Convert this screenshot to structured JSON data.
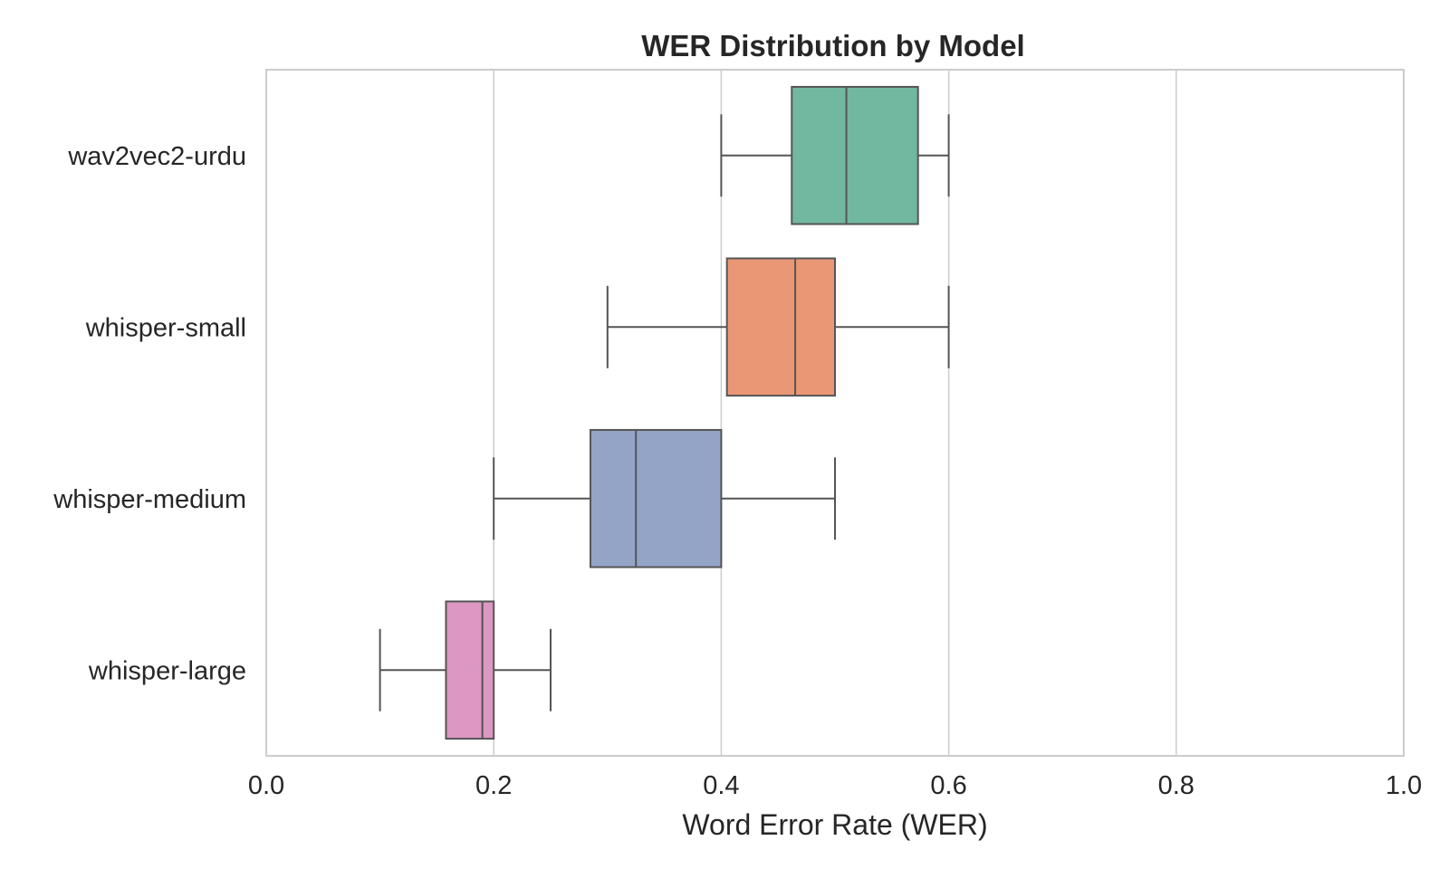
{
  "chart_data": {
    "type": "box",
    "orientation": "horizontal",
    "title": "WER Distribution by Model",
    "xlabel": "Word Error Rate (WER)",
    "ylabel": "",
    "xlim": [
      0,
      1.0
    ],
    "xticks": [
      "0.0",
      "0.2",
      "0.4",
      "0.6",
      "0.8",
      "1.0"
    ],
    "grid": "vertical",
    "categories": [
      "wav2vec2-urdu",
      "whisper-small",
      "whisper-medium",
      "whisper-large"
    ],
    "boxes": [
      {
        "name": "wav2vec2-urdu",
        "whislo": 0.4,
        "q1": 0.462,
        "med": 0.51,
        "q3": 0.573,
        "whishi": 0.6,
        "color": "#72b7a0"
      },
      {
        "name": "whisper-small",
        "whislo": 0.3,
        "q1": 0.405,
        "med": 0.465,
        "q3": 0.5,
        "whishi": 0.6,
        "color": "#ea9775"
      },
      {
        "name": "whisper-medium",
        "whislo": 0.2,
        "q1": 0.285,
        "med": 0.325,
        "q3": 0.4,
        "whishi": 0.5,
        "color": "#93a4c6"
      },
      {
        "name": "whisper-large",
        "whislo": 0.1,
        "q1": 0.158,
        "med": 0.19,
        "q3": 0.2,
        "whishi": 0.25,
        "color": "#dc97c2"
      }
    ]
  }
}
